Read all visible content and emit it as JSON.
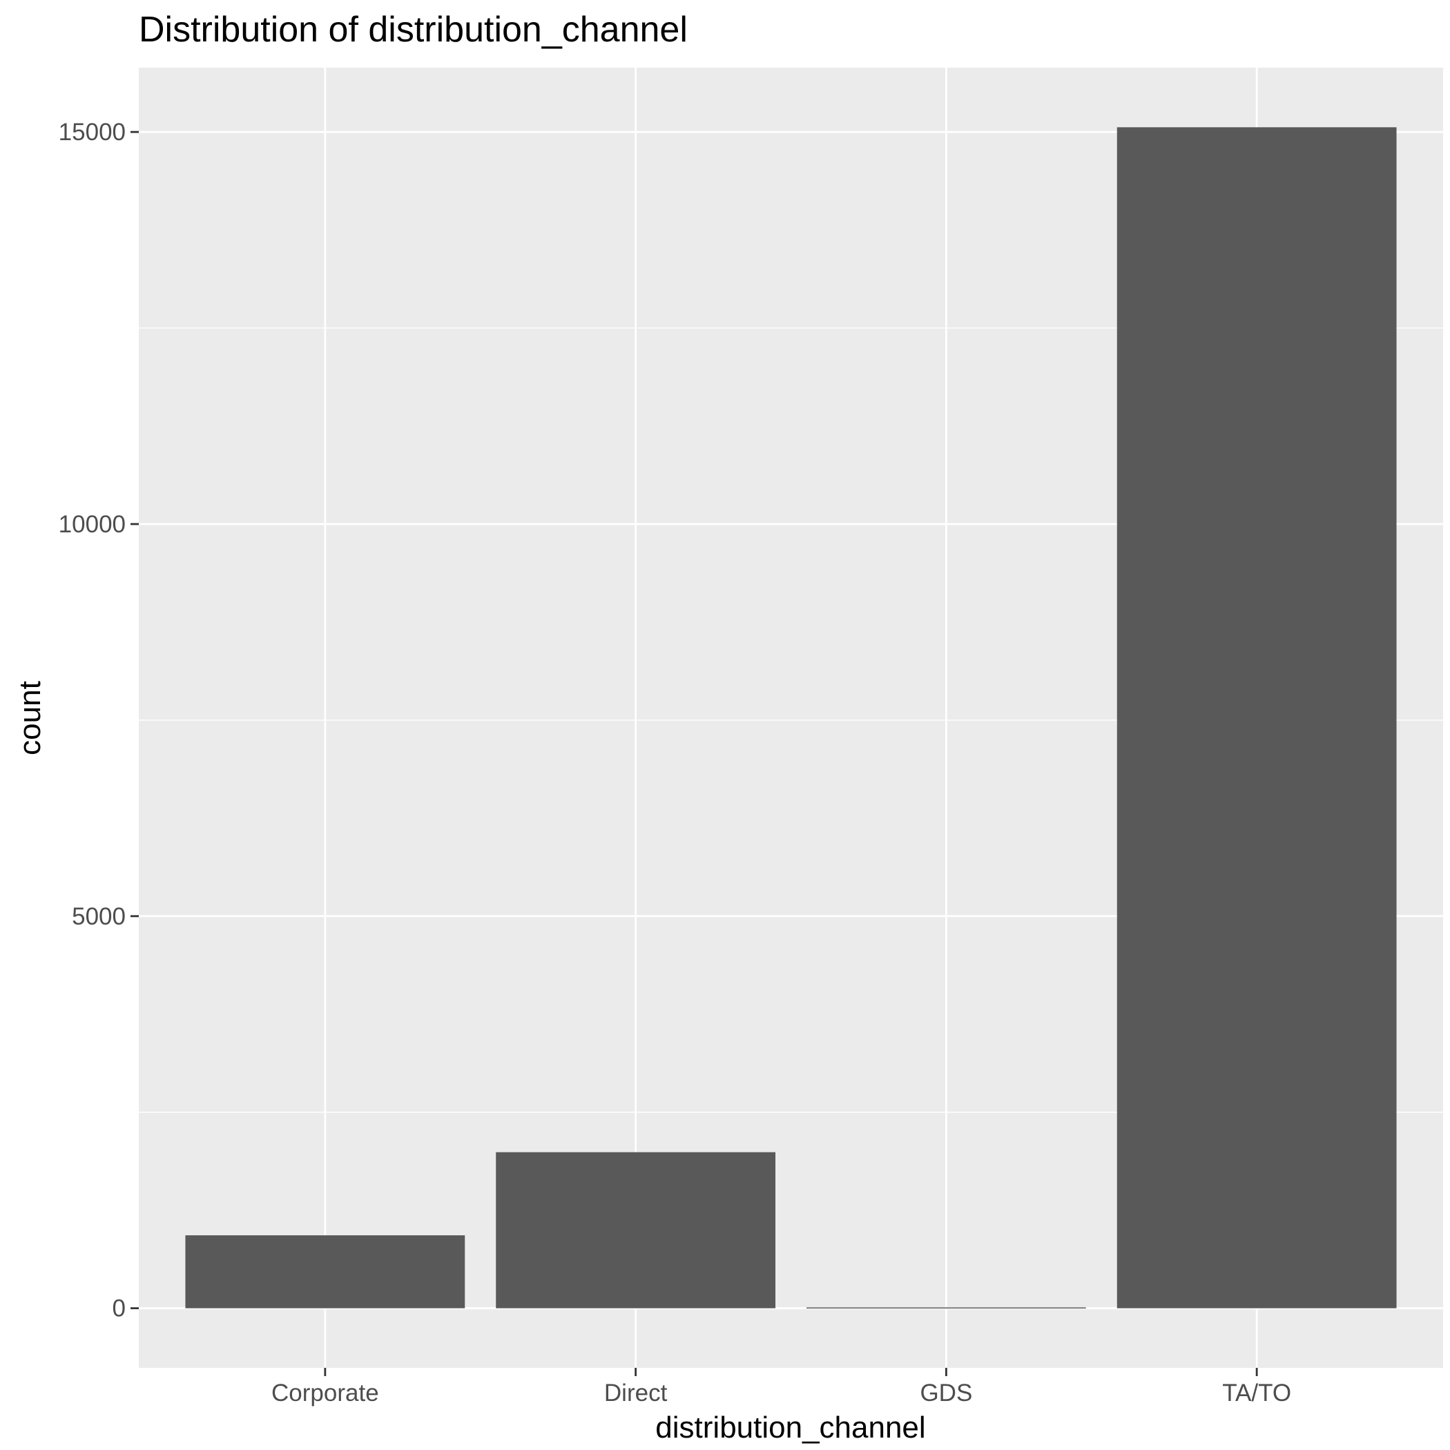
{
  "chart_data": {
    "type": "bar",
    "title": "Distribution of distribution_channel",
    "xlabel": "distribution_channel",
    "ylabel": "count",
    "categories": [
      "Corporate",
      "Direct",
      "GDS",
      "TA/TO"
    ],
    "values": [
      930,
      1990,
      10,
      15060
    ],
    "ylim": [
      -760,
      15820
    ],
    "y_ticks": [
      0,
      5000,
      10000,
      15000
    ],
    "grid": true,
    "legend": "none",
    "colors": {
      "bar": "#595959",
      "panel": "#ebebeb",
      "grid": "#ffffff",
      "tick_label": "#4d4d4d"
    }
  }
}
